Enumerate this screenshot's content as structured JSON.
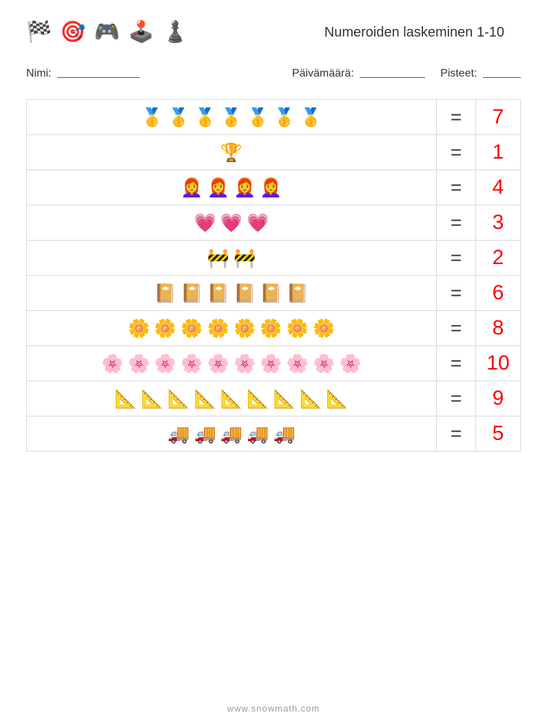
{
  "header": {
    "icons": [
      "🏁",
      "🎯",
      "🎮",
      "🕹️",
      "♟️"
    ],
    "title": "Numeroiden laskeminen 1-10"
  },
  "labels": {
    "name": "Nimi:",
    "date": "Päivämäärä:",
    "score": "Pisteet:"
  },
  "equals": "=",
  "answer_color": "#ff0000",
  "rows": [
    {
      "icon": "🥇",
      "count": 7,
      "answer": "7"
    },
    {
      "icon": "🏆",
      "count": 1,
      "answer": "1"
    },
    {
      "icon": "👩‍🦰",
      "count": 4,
      "answer": "4"
    },
    {
      "icon": "💗",
      "count": 3,
      "answer": "3"
    },
    {
      "icon": "🚧",
      "count": 2,
      "answer": "2"
    },
    {
      "icon": "📔",
      "count": 6,
      "answer": "6"
    },
    {
      "icon": "🌼",
      "count": 8,
      "answer": "8"
    },
    {
      "icon": "🌸",
      "count": 10,
      "answer": "10"
    },
    {
      "icon": "📐",
      "count": 9,
      "answer": "9"
    },
    {
      "icon": "🚚",
      "count": 5,
      "answer": "5"
    }
  ],
  "footer": "www.snowmath.com"
}
